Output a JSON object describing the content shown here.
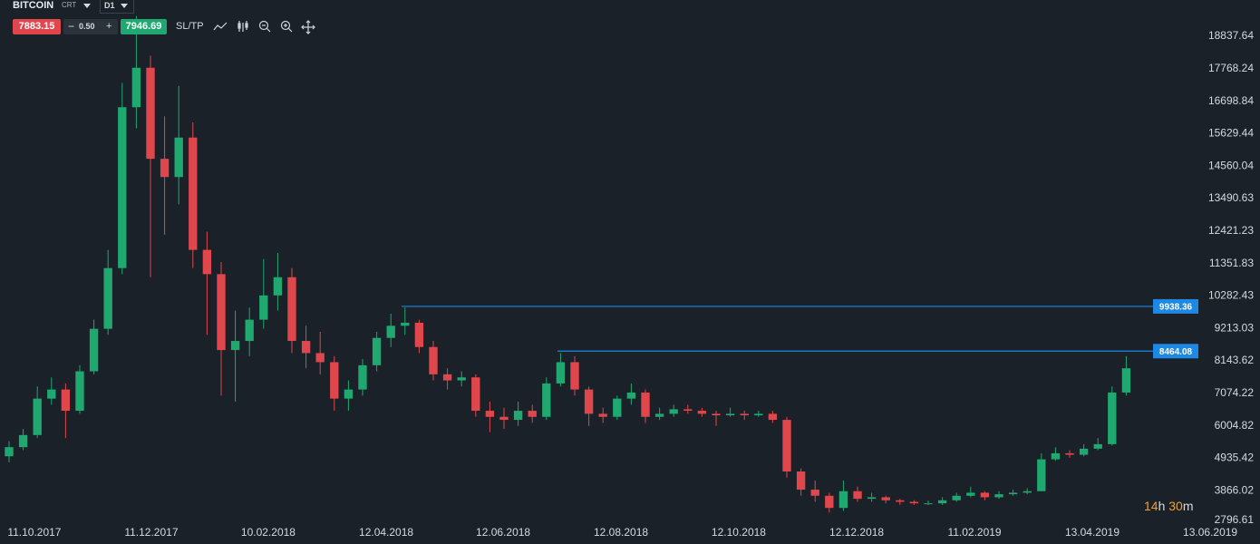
{
  "toolbar": {
    "symbol": "BITCOIN",
    "account": "CRT",
    "timeframe": "D1",
    "sell_price": 7883.15,
    "volume": "0.50",
    "buy_price": 7946.69,
    "sltp": "SL/TP"
  },
  "chart_data": {
    "type": "candlestick",
    "up_color": "#1fa870",
    "down_color": "#e0474c",
    "ohlc": [
      [
        5000,
        5500,
        4800,
        5300
      ],
      [
        5300,
        5900,
        5200,
        5700
      ],
      [
        5700,
        7300,
        5600,
        6900
      ],
      [
        6900,
        7600,
        6700,
        7200
      ],
      [
        7200,
        7400,
        5600,
        6500
      ],
      [
        6500,
        8000,
        6400,
        7800
      ],
      [
        7800,
        9500,
        7700,
        9200
      ],
      [
        9200,
        11800,
        9000,
        11200
      ],
      [
        11200,
        17300,
        11000,
        16500
      ],
      [
        16500,
        19500,
        15800,
        17800
      ],
      [
        17800,
        18200,
        10900,
        14800
      ],
      [
        14800,
        16200,
        12300,
        14200
      ],
      [
        14200,
        17200,
        13300,
        15500
      ],
      [
        15500,
        16000,
        11200,
        11800
      ],
      [
        11800,
        12400,
        9000,
        11000
      ],
      [
        11000,
        11400,
        7000,
        8500
      ],
      [
        8500,
        9800,
        6800,
        8800
      ],
      [
        8800,
        9900,
        8300,
        9500
      ],
      [
        9500,
        11500,
        9200,
        10300
      ],
      [
        10300,
        11700,
        9800,
        10900
      ],
      [
        10900,
        11200,
        8400,
        8800
      ],
      [
        8800,
        9300,
        7900,
        8400
      ],
      [
        8400,
        9100,
        7700,
        8100
      ],
      [
        8100,
        8300,
        6500,
        6900
      ],
      [
        6900,
        7500,
        6500,
        7200
      ],
      [
        7200,
        8200,
        7000,
        8000
      ],
      [
        8000,
        9100,
        7800,
        8900
      ],
      [
        8900,
        9700,
        8600,
        9300
      ],
      [
        9300,
        9900,
        9000,
        9400
      ],
      [
        9400,
        9500,
        8400,
        8600
      ],
      [
        8600,
        8800,
        7500,
        7700
      ],
      [
        7700,
        7900,
        7200,
        7500
      ],
      [
        7500,
        7800,
        7300,
        7600
      ],
      [
        7600,
        7700,
        6300,
        6500
      ],
      [
        6500,
        6800,
        5800,
        6300
      ],
      [
        6300,
        6600,
        5900,
        6200
      ],
      [
        6200,
        6800,
        6000,
        6500
      ],
      [
        6500,
        6700,
        6100,
        6300
      ],
      [
        6300,
        7600,
        6200,
        7400
      ],
      [
        7400,
        8400,
        7300,
        8100
      ],
      [
        8100,
        8300,
        7000,
        7200
      ],
      [
        7200,
        7300,
        6000,
        6400
      ],
      [
        6400,
        6600,
        6100,
        6300
      ],
      [
        6300,
        7000,
        6200,
        6900
      ],
      [
        6900,
        7400,
        6700,
        7100
      ],
      [
        7100,
        7200,
        6100,
        6300
      ],
      [
        6300,
        6600,
        6200,
        6400
      ],
      [
        6400,
        6700,
        6300,
        6550
      ],
      [
        6550,
        6700,
        6400,
        6500
      ],
      [
        6500,
        6600,
        6300,
        6400
      ],
      [
        6400,
        6500,
        6000,
        6350
      ],
      [
        6350,
        6600,
        6300,
        6400
      ],
      [
        6400,
        6500,
        6200,
        6350
      ],
      [
        6350,
        6500,
        6300,
        6400
      ],
      [
        6400,
        6500,
        6100,
        6200
      ],
      [
        6200,
        6300,
        4300,
        4500
      ],
      [
        4500,
        4600,
        3700,
        3900
      ],
      [
        3900,
        4200,
        3500,
        3700
      ],
      [
        3700,
        3800,
        3150,
        3300
      ],
      [
        3300,
        4200,
        3200,
        3850
      ],
      [
        3850,
        4000,
        3500,
        3600
      ],
      [
        3600,
        3800,
        3500,
        3650
      ],
      [
        3650,
        3700,
        3450,
        3550
      ],
      [
        3550,
        3600,
        3400,
        3500
      ],
      [
        3500,
        3550,
        3400,
        3450
      ],
      [
        3450,
        3550,
        3400,
        3450
      ],
      [
        3450,
        3650,
        3400,
        3550
      ],
      [
        3550,
        3800,
        3500,
        3700
      ],
      [
        3700,
        4000,
        3650,
        3800
      ],
      [
        3800,
        3850,
        3550,
        3650
      ],
      [
        3650,
        3850,
        3600,
        3750
      ],
      [
        3750,
        3900,
        3700,
        3800
      ],
      [
        3800,
        3950,
        3750,
        3850
      ],
      [
        3850,
        5100,
        3850,
        4900
      ],
      [
        4900,
        5300,
        4850,
        5100
      ],
      [
        5100,
        5200,
        4950,
        5050
      ],
      [
        5050,
        5400,
        5000,
        5250
      ],
      [
        5250,
        5600,
        5200,
        5400
      ],
      [
        5400,
        7300,
        5350,
        7100
      ],
      [
        7100,
        8300,
        7000,
        7900
      ]
    ],
    "ylim": [
      2409,
      20032
    ],
    "yticks": [
      18837.64,
      17768.24,
      16698.84,
      15629.44,
      14560.04,
      13490.63,
      12421.23,
      11351.83,
      10282.43,
      9213.03,
      8143.62,
      7074.22,
      6004.82,
      4935.42,
      3866.02,
      2796.61
    ],
    "xlim": [
      -0.64,
      88.46
    ],
    "xticks": [
      {
        "value": 1.79,
        "label": "11.10.2017"
      },
      {
        "value": 10.06,
        "label": "11.12.2017"
      },
      {
        "value": 18.33,
        "label": "10.02.2018"
      },
      {
        "value": 26.67,
        "label": "12.04.2018"
      },
      {
        "value": 34.94,
        "label": "12.06.2018"
      },
      {
        "value": 43.27,
        "label": "12.08.2018"
      },
      {
        "value": 51.6,
        "label": "12.10.2018"
      },
      {
        "value": 59.94,
        "label": "12.12.2018"
      },
      {
        "value": 68.27,
        "label": "11.02.2019"
      },
      {
        "value": 76.6,
        "label": "13.04.2019"
      },
      {
        "value": 84.94,
        "label": "13.06.2019"
      }
    ],
    "levels": [
      9938.36,
      8464.08
    ],
    "level_color": "#1e88e5"
  },
  "countdown": {
    "hours": 14,
    "hours_unit": "h",
    "minutes": 30,
    "minutes_unit": "m"
  }
}
